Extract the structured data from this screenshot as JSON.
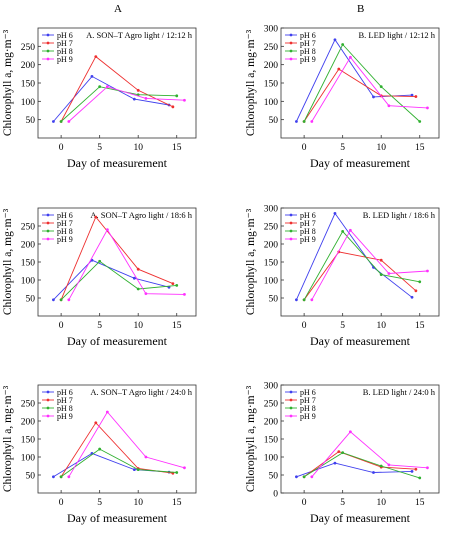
{
  "figure": {
    "column_headers": [
      "A",
      "B"
    ],
    "series_colors": {
      "pH 6": "#4040ee",
      "pH 7": "#ee3030",
      "pH 8": "#30b030",
      "pH 9": "#ff30ff"
    }
  },
  "chart_data": [
    {
      "type": "line",
      "title": "A. SON–T Agro light / 12:12 h",
      "xlabel": "Day of measurement",
      "ylabel": "Chlorophyll a, mg·m⁻³",
      "xlim": [
        -3,
        17.5
      ],
      "ylim": [
        0,
        300
      ],
      "xticks": [
        0,
        5,
        10,
        15
      ],
      "yticks": [
        50,
        100,
        150,
        200,
        250
      ],
      "series": [
        {
          "name": "pH 6",
          "x": [
            -1,
            4,
            9.5,
            14
          ],
          "y": [
            45,
            168,
            106,
            90
          ]
        },
        {
          "name": "pH 7",
          "x": [
            0,
            4.5,
            10,
            14.5
          ],
          "y": [
            45,
            222,
            130,
            85
          ]
        },
        {
          "name": "pH 8",
          "x": [
            0,
            5,
            10,
            15
          ],
          "y": [
            45,
            140,
            118,
            115
          ]
        },
        {
          "name": "pH 9",
          "x": [
            1,
            6,
            11,
            16
          ],
          "y": [
            45,
            140,
            108,
            103
          ]
        }
      ]
    },
    {
      "type": "line",
      "title": "B. LED light / 12:12 h",
      "xlabel": "Day of measurement",
      "ylabel": "Chlorophyll a, mg·m⁻³",
      "xlim": [
        -3,
        17.5
      ],
      "ylim": [
        0,
        300
      ],
      "xticks": [
        0,
        5,
        10,
        15
      ],
      "yticks": [
        50,
        100,
        150,
        200,
        250,
        300
      ],
      "series": [
        {
          "name": "pH 6",
          "x": [
            -1,
            4,
            9,
            14
          ],
          "y": [
            45,
            268,
            112,
            117
          ]
        },
        {
          "name": "pH 7",
          "x": [
            0,
            4.5,
            10,
            14.5
          ],
          "y": [
            45,
            188,
            115,
            113
          ]
        },
        {
          "name": "pH 8",
          "x": [
            0,
            5,
            10,
            15
          ],
          "y": [
            45,
            255,
            140,
            45
          ]
        },
        {
          "name": "pH 9",
          "x": [
            1,
            6,
            11,
            16
          ],
          "y": [
            45,
            220,
            88,
            82
          ]
        }
      ]
    },
    {
      "type": "line",
      "title": "A. SON–T Agro light / 18:6 h",
      "xlabel": "Day of measurement",
      "ylabel": "Chlorophyll a, mg·m⁻³",
      "xlim": [
        -3,
        17.5
      ],
      "ylim": [
        0,
        300
      ],
      "xticks": [
        0,
        5,
        10,
        15
      ],
      "yticks": [
        50,
        100,
        150,
        200,
        250
      ],
      "series": [
        {
          "name": "pH 6",
          "x": [
            -1,
            4,
            9.5,
            14
          ],
          "y": [
            45,
            155,
            105,
            80
          ]
        },
        {
          "name": "pH 7",
          "x": [
            0,
            4.5,
            10,
            14.5
          ],
          "y": [
            45,
            275,
            130,
            90
          ]
        },
        {
          "name": "pH 8",
          "x": [
            0,
            5,
            10,
            15
          ],
          "y": [
            45,
            152,
            75,
            85
          ]
        },
        {
          "name": "pH 9",
          "x": [
            1,
            6,
            11,
            16
          ],
          "y": [
            45,
            240,
            62,
            60
          ]
        }
      ]
    },
    {
      "type": "line",
      "title": "B. LED light / 18:6 h",
      "xlabel": "Day of measurement",
      "ylabel": "Chlorophyll a, mg·m⁻³",
      "xlim": [
        -3,
        17.5
      ],
      "ylim": [
        0,
        300
      ],
      "xticks": [
        0,
        5,
        10,
        15
      ],
      "yticks": [
        50,
        100,
        150,
        200,
        250,
        300
      ],
      "series": [
        {
          "name": "pH 6",
          "x": [
            -1,
            4,
            9,
            14
          ],
          "y": [
            45,
            285,
            135,
            52
          ]
        },
        {
          "name": "pH 7",
          "x": [
            0,
            4.5,
            10,
            14.5
          ],
          "y": [
            45,
            178,
            155,
            70
          ]
        },
        {
          "name": "pH 8",
          "x": [
            0,
            5,
            10,
            15
          ],
          "y": [
            45,
            235,
            115,
            95
          ]
        },
        {
          "name": "pH 9",
          "x": [
            1,
            6,
            11,
            16
          ],
          "y": [
            45,
            238,
            118,
            125
          ]
        }
      ]
    },
    {
      "type": "line",
      "title": "A. SON–T Agro light / 24:0 h",
      "xlabel": "Day of measurement",
      "ylabel": "Chlorophyll a, mg·m⁻³",
      "xlim": [
        -3,
        17.5
      ],
      "ylim": [
        0,
        300
      ],
      "xticks": [
        0,
        5,
        10,
        15
      ],
      "yticks": [
        50,
        100,
        150,
        200,
        250
      ],
      "series": [
        {
          "name": "pH 6",
          "x": [
            -1,
            4,
            9.5,
            14
          ],
          "y": [
            45,
            110,
            65,
            58
          ]
        },
        {
          "name": "pH 7",
          "x": [
            0,
            4.5,
            10,
            14.5
          ],
          "y": [
            45,
            195,
            68,
            55
          ]
        },
        {
          "name": "pH 8",
          "x": [
            0,
            5,
            10,
            15
          ],
          "y": [
            45,
            122,
            65,
            57
          ]
        },
        {
          "name": "pH 9",
          "x": [
            1,
            6,
            11,
            16
          ],
          "y": [
            45,
            225,
            100,
            70
          ]
        }
      ]
    },
    {
      "type": "line",
      "title": "B. LED light / 24:0 h",
      "xlabel": "Day of measurement",
      "ylabel": "Chlorophyll a, mg·m⁻³",
      "xlim": [
        -3,
        17.5
      ],
      "ylim": [
        0,
        300
      ],
      "xticks": [
        0,
        5,
        10,
        15
      ],
      "yticks": [
        0,
        50,
        100,
        150,
        200,
        250,
        300
      ],
      "series": [
        {
          "name": "pH 6",
          "x": [
            -1,
            4,
            9,
            14
          ],
          "y": [
            45,
            83,
            57,
            60
          ]
        },
        {
          "name": "pH 7",
          "x": [
            0,
            4.5,
            10,
            14.5
          ],
          "y": [
            45,
            115,
            72,
            66
          ]
        },
        {
          "name": "pH 8",
          "x": [
            0,
            5,
            10,
            15
          ],
          "y": [
            45,
            112,
            75,
            42
          ]
        },
        {
          "name": "pH 9",
          "x": [
            1,
            6,
            11,
            16
          ],
          "y": [
            45,
            170,
            78,
            70
          ]
        }
      ]
    }
  ]
}
